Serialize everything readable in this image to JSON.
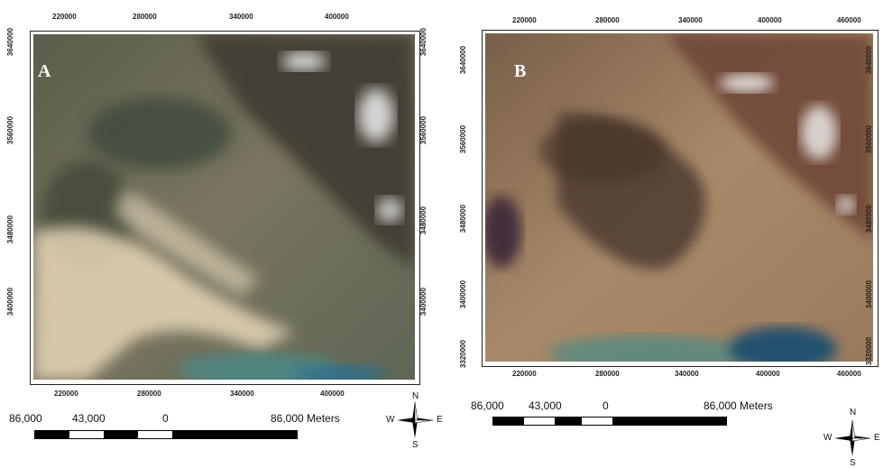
{
  "panels": [
    {
      "letter": "A",
      "x_ticks": [
        "220000",
        "280000",
        "340000",
        "400000"
      ],
      "y_ticks": [
        "3640000",
        "3560000",
        "3480000",
        "3400000"
      ],
      "scale": {
        "left": "86,000",
        "mid": "43,000",
        "zero": "0",
        "right": "86,000 Meters"
      }
    },
    {
      "letter": "B",
      "x_ticks": [
        "220000",
        "280000",
        "340000",
        "400000",
        "460000"
      ],
      "y_ticks": [
        "3640000",
        "3560000",
        "3480000",
        "3400000",
        "3320000"
      ],
      "scale": {
        "left": "86,000",
        "mid": "43,000",
        "zero": "0",
        "right": "86,000 Meters"
      }
    }
  ],
  "compass": {
    "n": "N",
    "s": "S",
    "e": "E",
    "w": "W"
  },
  "colors": {
    "panel_a_ground": "#6b6a55",
    "panel_a_haze": "#e8dcc0",
    "panel_b_ground": "#8a6a50",
    "water": "#2e6f7a",
    "snow": "#f2f2f2"
  }
}
